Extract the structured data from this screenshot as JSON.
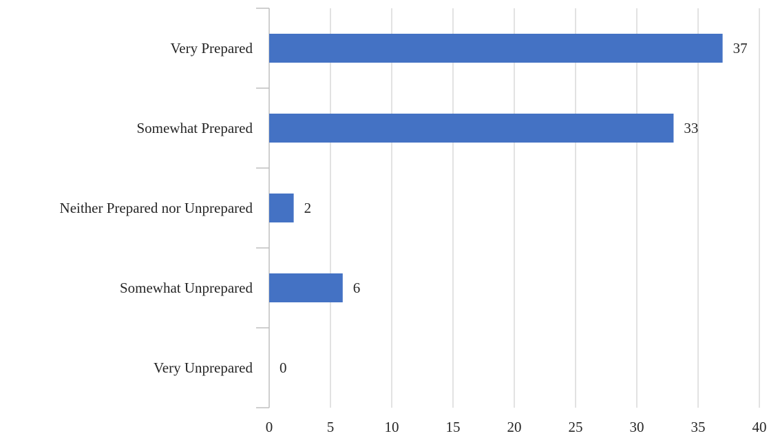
{
  "chart_data": {
    "type": "bar",
    "orientation": "horizontal",
    "categories": [
      "Very Prepared",
      "Somewhat Prepared",
      "Neither Prepared nor Unprepared",
      "Somewhat Unprepared",
      "Very Unprepared"
    ],
    "values": [
      37,
      33,
      2,
      6,
      0
    ],
    "xlim": [
      0,
      40
    ],
    "xticks": [
      0,
      5,
      10,
      15,
      20,
      25,
      30,
      35,
      40
    ],
    "grid": "vertical",
    "legend": "none",
    "data_labels": true,
    "bar_color": "#4472C4",
    "grid_color": "#D9D9D9",
    "axis_color": "#BFBFBF",
    "text_color": "#262626"
  }
}
